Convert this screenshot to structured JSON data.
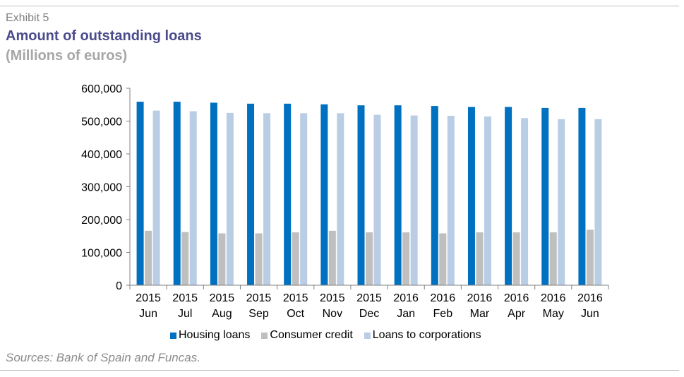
{
  "header": {
    "exhibit": "Exhibit 5",
    "title": "Amount of outstanding loans",
    "subtitle": "(Millions of euros)"
  },
  "footer": {
    "source": "Sources: Bank of Spain and Funcas."
  },
  "colors": {
    "housing": "#0070c0",
    "consumer": "#bfbfbf",
    "corporations": "#b9cde5",
    "axis": "#808080"
  },
  "chart_data": {
    "type": "bar",
    "categories": [
      [
        "2015",
        "Jun"
      ],
      [
        "2015",
        "Jul"
      ],
      [
        "2015",
        "Aug"
      ],
      [
        "2015",
        "Sep"
      ],
      [
        "2015",
        "Oct"
      ],
      [
        "2015",
        "Nov"
      ],
      [
        "2015",
        "Dec"
      ],
      [
        "2016",
        "Jan"
      ],
      [
        "2016",
        "Feb"
      ],
      [
        "2016",
        "Mar"
      ],
      [
        "2016",
        "Apr"
      ],
      [
        "2016",
        "May"
      ],
      [
        "2016",
        "Jun"
      ]
    ],
    "series": [
      {
        "name": "Housing loans",
        "color": "#0070c0",
        "values": [
          559000,
          559000,
          556000,
          553000,
          553000,
          551000,
          548000,
          548000,
          546000,
          543000,
          543000,
          540000,
          540000
        ]
      },
      {
        "name": "Consumer credit",
        "color": "#bfbfbf",
        "values": [
          166000,
          162000,
          158000,
          158000,
          161000,
          166000,
          161000,
          161000,
          158000,
          161000,
          161000,
          161000,
          169000
        ]
      },
      {
        "name": "Loans to corporations",
        "color": "#b9cde5",
        "values": [
          532000,
          530000,
          525000,
          524000,
          524000,
          524000,
          519000,
          517000,
          516000,
          514000,
          509000,
          506000,
          506000
        ]
      }
    ],
    "ylim": [
      0,
      600000
    ],
    "yticks": [
      "0",
      "100,000",
      "200,000",
      "300,000",
      "400,000",
      "500,000",
      "600,000"
    ],
    "ytick_values": [
      0,
      100000,
      200000,
      300000,
      400000,
      500000,
      600000
    ],
    "legend_position": "bottom",
    "grid": false
  }
}
